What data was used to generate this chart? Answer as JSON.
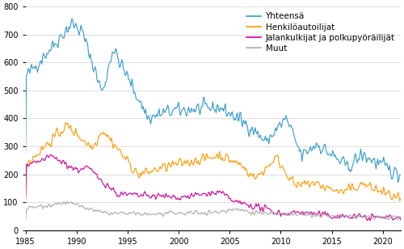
{
  "xlim": [
    1985.0,
    2021.75
  ],
  "ylim": [
    0,
    800
  ],
  "yticks": [
    0,
    100,
    200,
    300,
    400,
    500,
    600,
    700,
    800
  ],
  "xticks": [
    1985,
    1990,
    1995,
    2000,
    2005,
    2010,
    2015,
    2020
  ],
  "legend": {
    "labels": [
      "Yhteensä",
      "Henkilöautoilijat",
      "Jalankulkijat ja polkupyöräilijät",
      "Muut"
    ],
    "colors": [
      "#3399cc",
      "#ff9900",
      "#cc0099",
      "#aaaaaa"
    ],
    "loc": "upper right"
  },
  "line_width": 0.8,
  "background_color": "#ffffff",
  "grid_color": "#d8d8d8",
  "tick_fontsize": 7,
  "legend_fontsize": 7.5
}
